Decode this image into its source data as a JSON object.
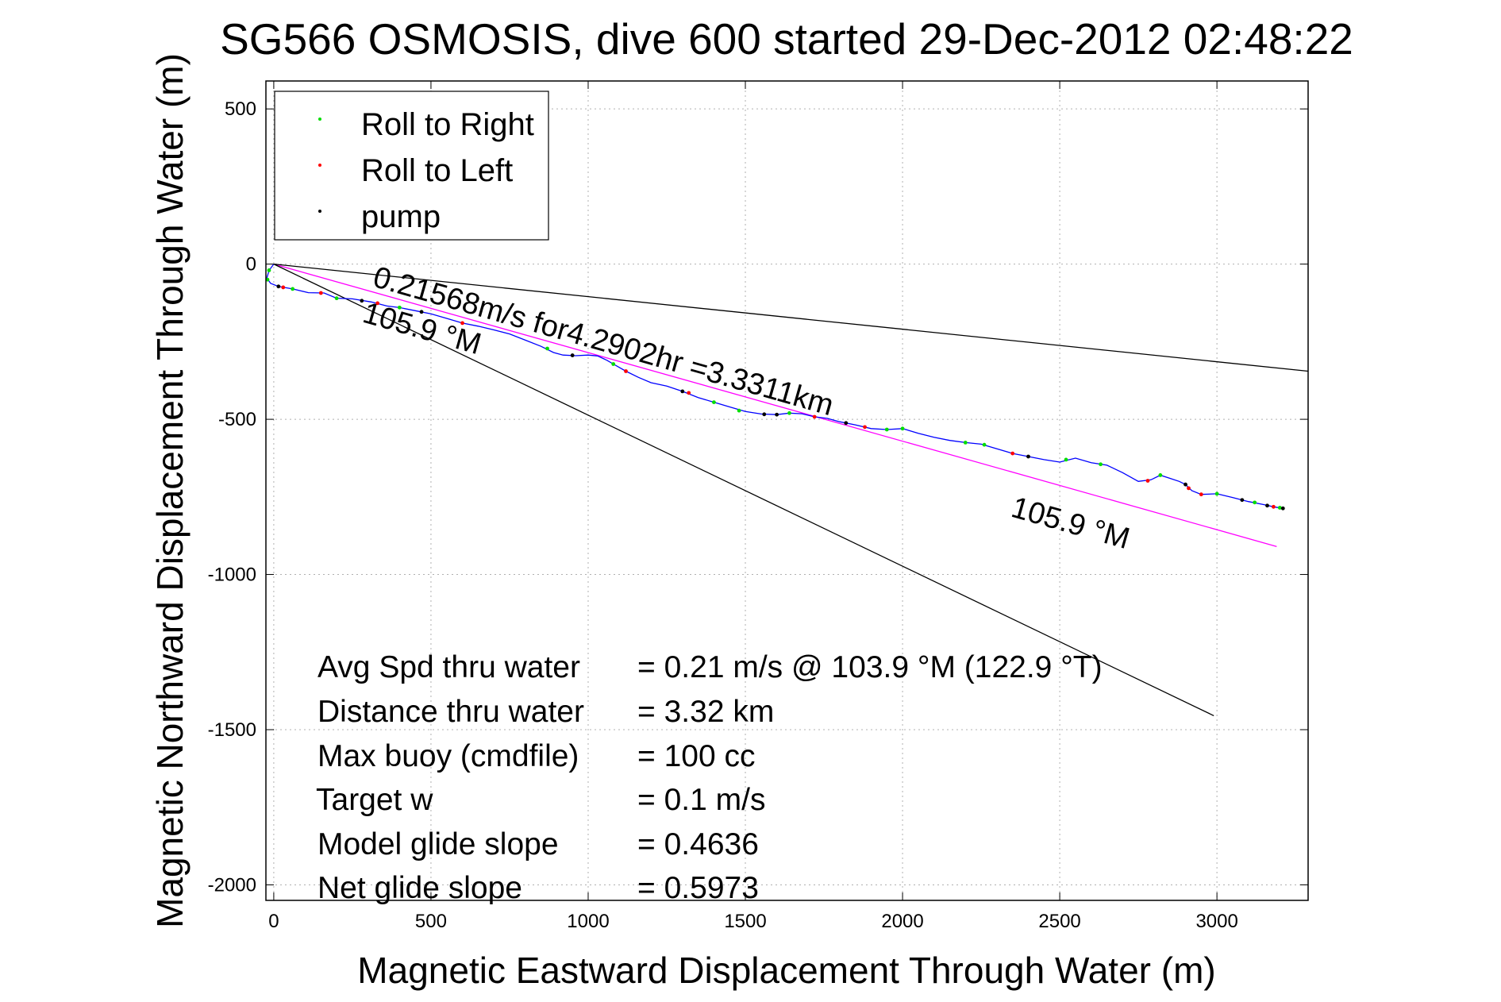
{
  "chart_data": {
    "type": "line",
    "title": "SG566 OSMOSIS, dive 600 started 29-Dec-2012 02:48:22",
    "xlabel": "Magnetic Eastward Displacement Through Water (m)",
    "ylabel": "Magnetic Northward Displacement Through Water (m)",
    "xlim": [
      -25,
      3290
    ],
    "ylim": [
      -2050,
      590
    ],
    "xticks": [
      0,
      500,
      1000,
      1500,
      2000,
      2500,
      3000
    ],
    "yticks": [
      500,
      0,
      -500,
      -1000,
      -1500,
      -2000
    ],
    "grid": true,
    "legend": {
      "placement": "top-left",
      "entries": [
        {
          "label": "Roll to Right",
          "color": "#00dd00"
        },
        {
          "label": "Roll to Left",
          "color": "#ff0000"
        },
        {
          "label": "pump",
          "color": "#000000"
        }
      ]
    },
    "track": {
      "color": "#0000ff",
      "points": [
        [
          0,
          0
        ],
        [
          -15,
          -20
        ],
        [
          -22,
          -45
        ],
        [
          -10,
          -62
        ],
        [
          15,
          -72
        ],
        [
          60,
          -80
        ],
        [
          110,
          -92
        ],
        [
          160,
          -93
        ],
        [
          200,
          -110
        ],
        [
          250,
          -112
        ],
        [
          310,
          -122
        ],
        [
          360,
          -135
        ],
        [
          400,
          -140
        ],
        [
          450,
          -150
        ],
        [
          500,
          -160
        ],
        [
          550,
          -175
        ],
        [
          600,
          -190
        ],
        [
          650,
          -200
        ],
        [
          700,
          -212
        ],
        [
          750,
          -225
        ],
        [
          800,
          -245
        ],
        [
          850,
          -265
        ],
        [
          890,
          -285
        ],
        [
          920,
          -293
        ],
        [
          960,
          -295
        ],
        [
          1000,
          -293
        ],
        [
          1030,
          -296
        ],
        [
          1060,
          -310
        ],
        [
          1080,
          -322
        ],
        [
          1120,
          -345
        ],
        [
          1160,
          -365
        ],
        [
          1200,
          -382
        ],
        [
          1250,
          -393
        ],
        [
          1300,
          -410
        ],
        [
          1350,
          -430
        ],
        [
          1400,
          -445
        ],
        [
          1450,
          -460
        ],
        [
          1500,
          -475
        ],
        [
          1550,
          -483
        ],
        [
          1600,
          -485
        ],
        [
          1640,
          -480
        ],
        [
          1680,
          -482
        ],
        [
          1720,
          -492
        ],
        [
          1760,
          -497
        ],
        [
          1800,
          -508
        ],
        [
          1850,
          -518
        ],
        [
          1900,
          -530
        ],
        [
          1950,
          -533
        ],
        [
          2000,
          -530
        ],
        [
          2050,
          -545
        ],
        [
          2100,
          -558
        ],
        [
          2150,
          -568
        ],
        [
          2200,
          -575
        ],
        [
          2250,
          -580
        ],
        [
          2300,
          -595
        ],
        [
          2350,
          -610
        ],
        [
          2400,
          -620
        ],
        [
          2450,
          -630
        ],
        [
          2500,
          -638
        ],
        [
          2550,
          -625
        ],
        [
          2600,
          -640
        ],
        [
          2650,
          -648
        ],
        [
          2700,
          -672
        ],
        [
          2750,
          -700
        ],
        [
          2790,
          -695
        ],
        [
          2820,
          -680
        ],
        [
          2850,
          -690
        ],
        [
          2880,
          -700
        ],
        [
          2900,
          -710
        ],
        [
          2920,
          -730
        ],
        [
          2950,
          -742
        ],
        [
          3000,
          -740
        ],
        [
          3050,
          -752
        ],
        [
          3100,
          -765
        ],
        [
          3150,
          -775
        ],
        [
          3180,
          -782
        ],
        [
          3210,
          -787
        ]
      ]
    },
    "roll_right_points": [
      [
        -15,
        -20
      ],
      [
        -20,
        -50
      ],
      [
        60,
        -80
      ],
      [
        200,
        -110
      ],
      [
        400,
        -140
      ],
      [
        870,
        -272
      ],
      [
        1080,
        -322
      ],
      [
        1400,
        -445
      ],
      [
        1480,
        -472
      ],
      [
        1640,
        -480
      ],
      [
        1950,
        -533
      ],
      [
        2000,
        -530
      ],
      [
        2200,
        -575
      ],
      [
        2260,
        -582
      ],
      [
        2520,
        -630
      ],
      [
        2630,
        -645
      ],
      [
        2820,
        -680
      ],
      [
        3000,
        -740
      ],
      [
        3120,
        -768
      ],
      [
        3200,
        -785
      ]
    ],
    "roll_left_points": [
      [
        30,
        -75
      ],
      [
        150,
        -93
      ],
      [
        330,
        -126
      ],
      [
        600,
        -190
      ],
      [
        1120,
        -345
      ],
      [
        1320,
        -415
      ],
      [
        1720,
        -492
      ],
      [
        1880,
        -525
      ],
      [
        2350,
        -610
      ],
      [
        2780,
        -698
      ],
      [
        2910,
        -722
      ],
      [
        2950,
        -742
      ],
      [
        3180,
        -782
      ]
    ],
    "pump_points": [
      [
        15,
        -72
      ],
      [
        280,
        -118
      ],
      [
        470,
        -154
      ],
      [
        950,
        -294
      ],
      [
        1300,
        -410
      ],
      [
        1560,
        -484
      ],
      [
        1600,
        -485
      ],
      [
        1820,
        -512
      ],
      [
        2400,
        -620
      ],
      [
        2900,
        -710
      ],
      [
        3080,
        -760
      ],
      [
        3160,
        -778
      ],
      [
        3210,
        -787
      ]
    ],
    "reference_lines": [
      {
        "name": "magenta-heading-line",
        "color": "#ff00ff",
        "points": [
          [
            0,
            0
          ],
          [
            3190,
            -910
          ]
        ]
      },
      {
        "name": "black-steep-line",
        "color": "#000000",
        "points": [
          [
            0,
            0
          ],
          [
            2990,
            -1455
          ]
        ]
      },
      {
        "name": "black-shallow-line",
        "color": "#000000",
        "points": [
          [
            0,
            0
          ],
          [
            3290,
            -345
          ]
        ]
      }
    ],
    "annotations": [
      {
        "text": "0.21568m/s for4.2902hr =3.3311km"
      },
      {
        "text": "105.9 °M"
      },
      {
        "text": "105.9 °M"
      }
    ],
    "stats": [
      {
        "label": "Avg Spd thru water",
        "value": "=  0.21 m/s @ 103.9 °M (122.9 °T)"
      },
      {
        "label": "Distance thru water",
        "value": "=  3.32 km"
      },
      {
        "label": "Max buoy (cmdfile)",
        "value": "= 100 cc"
      },
      {
        "label": "Target w",
        "value": "= 0.1 m/s"
      },
      {
        "label": "Model glide slope",
        "value": "= 0.4636"
      },
      {
        "label": "Net glide slope",
        "value": "= 0.5973"
      }
    ]
  }
}
